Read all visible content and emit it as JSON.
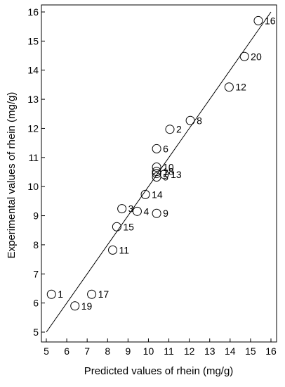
{
  "chart_data": {
    "type": "scatter",
    "title": "",
    "xlabel": "Predicted values of rhein (mg/g)",
    "ylabel": "Experimental values of rhein (mg/g)",
    "xlim": [
      5,
      16
    ],
    "ylim": [
      5,
      16
    ],
    "x_ticks": [
      5,
      6,
      7,
      8,
      9,
      10,
      11,
      12,
      13,
      14,
      15,
      16
    ],
    "y_ticks": [
      5,
      6,
      7,
      8,
      9,
      10,
      11,
      12,
      13,
      14,
      15,
      16
    ],
    "grid": false,
    "reference_line": {
      "x": [
        5,
        16
      ],
      "y": [
        5,
        16
      ]
    },
    "points": [
      {
        "label": "1",
        "x": 5.25,
        "y": 6.3
      },
      {
        "label": "2",
        "x": 11.05,
        "y": 11.97
      },
      {
        "label": "3",
        "x": 8.7,
        "y": 9.24
      },
      {
        "label": "4",
        "x": 9.45,
        "y": 9.15
      },
      {
        "label": "5",
        "x": 10.4,
        "y": 10.33
      },
      {
        "label": "6",
        "x": 10.4,
        "y": 11.3
      },
      {
        "label": "7",
        "x": 10.4,
        "y": 10.45
      },
      {
        "label": "8",
        "x": 12.05,
        "y": 12.27
      },
      {
        "label": "9",
        "x": 10.4,
        "y": 9.08
      },
      {
        "label": "10",
        "x": 10.4,
        "y": 10.67
      },
      {
        "label": "11",
        "x": 8.25,
        "y": 7.82
      },
      {
        "label": "12",
        "x": 13.95,
        "y": 13.42
      },
      {
        "label": "13",
        "x": 10.78,
        "y": 10.42
      },
      {
        "label": "14",
        "x": 9.85,
        "y": 9.73
      },
      {
        "label": "15",
        "x": 8.45,
        "y": 8.62
      },
      {
        "label": "16",
        "x": 15.38,
        "y": 15.7
      },
      {
        "label": "17",
        "x": 7.22,
        "y": 6.3
      },
      {
        "label": "18",
        "x": 10.4,
        "y": 10.52
      },
      {
        "label": "19",
        "x": 6.4,
        "y": 5.9
      },
      {
        "label": "20",
        "x": 14.7,
        "y": 14.47
      }
    ]
  }
}
